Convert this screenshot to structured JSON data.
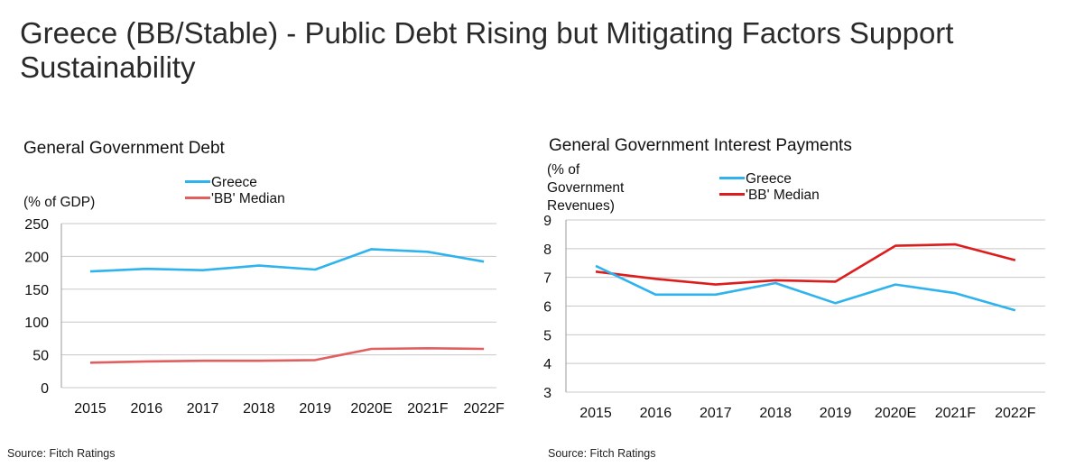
{
  "title": "Greece (BB/Stable) -  Public Debt Rising but Mitigating Factors Support Sustainability",
  "colors": {
    "greece": "#2eb3ee",
    "bb_debt": "#e06060",
    "bb_interest": "#dd1d1d",
    "grid": "#c8c8c8"
  },
  "chart_data": [
    {
      "type": "line",
      "title": "General Government Debt",
      "ylabel": "(% of GDP)",
      "xlabel": "",
      "categories": [
        "2015",
        "2016",
        "2017",
        "2018",
        "2019",
        "2020E",
        "2021F",
        "2022F"
      ],
      "ylim": [
        0,
        250
      ],
      "yticks": [
        "0",
        "50",
        "100",
        "150",
        "200",
        "250"
      ],
      "yticks_values": [
        0,
        50,
        100,
        150,
        200,
        250
      ],
      "grid": true,
      "legend_position": "top",
      "series": [
        {
          "name": "Greece",
          "values": [
            177,
            181,
            179,
            186,
            180,
            211,
            207,
            192
          ]
        },
        {
          "name": "'BB' Median",
          "values": [
            38,
            40,
            41,
            41,
            42,
            59,
            60,
            59
          ]
        }
      ],
      "source": "Source: Fitch Ratings"
    },
    {
      "type": "line",
      "title": "General Government Interest Payments",
      "ylabel": "(% of Government Revenues)",
      "ylabel_lines": [
        "(% of",
        "Government",
        "Revenues)"
      ],
      "xlabel": "",
      "categories": [
        "2015",
        "2016",
        "2017",
        "2018",
        "2019",
        "2020E",
        "2021F",
        "2022F"
      ],
      "ylim": [
        3,
        9
      ],
      "yticks": [
        "3",
        "4",
        "5",
        "6",
        "7",
        "8",
        "9"
      ],
      "yticks_values": [
        3,
        4,
        5,
        6,
        7,
        8,
        9
      ],
      "grid": true,
      "legend_position": "top",
      "series": [
        {
          "name": "Greece",
          "values": [
            7.4,
            6.4,
            6.4,
            6.8,
            6.1,
            6.75,
            6.45,
            5.85
          ]
        },
        {
          "name": "'BB' Median",
          "values": [
            7.2,
            6.95,
            6.75,
            6.9,
            6.85,
            8.1,
            8.15,
            7.6
          ]
        }
      ],
      "source": "Source: Fitch Ratings"
    }
  ]
}
